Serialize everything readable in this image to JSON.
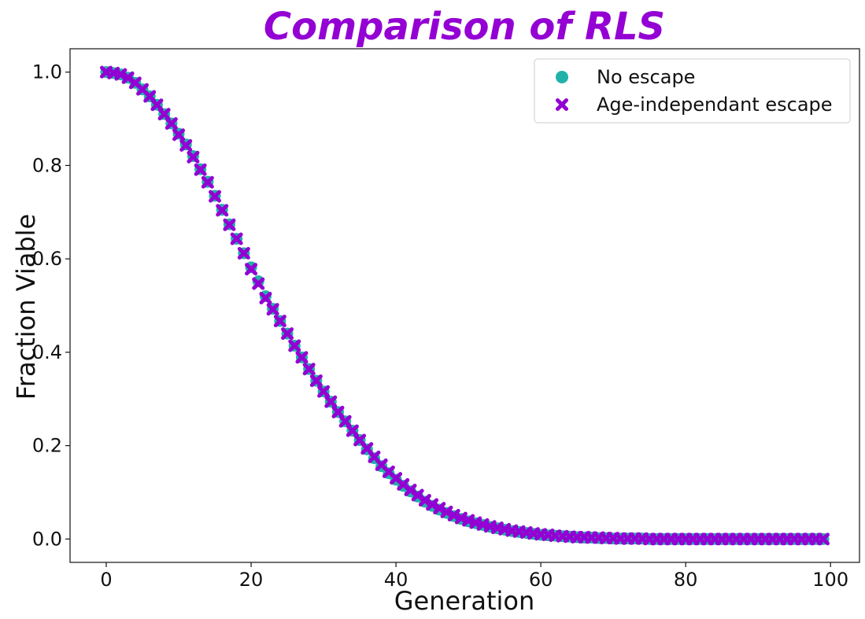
{
  "chart_data": {
    "type": "scatter",
    "title": "Comparison of RLS",
    "xlabel": "Generation",
    "ylabel": "Fraction Viable",
    "xlim": [
      -5,
      104
    ],
    "ylim": [
      -0.05,
      1.05
    ],
    "xticks": [
      0,
      20,
      40,
      60,
      80,
      100
    ],
    "xtick_labels": [
      "0",
      "20",
      "40",
      "60",
      "80",
      "100"
    ],
    "yticks": [
      0.0,
      0.2,
      0.4,
      0.6,
      0.8,
      1.0
    ],
    "ytick_labels": [
      "0.0",
      "0.2",
      "0.4",
      "0.6",
      "0.8",
      "1.0"
    ],
    "grid": false,
    "legend_position": "top-right",
    "x": [
      0,
      1,
      2,
      3,
      4,
      5,
      6,
      7,
      8,
      9,
      10,
      11,
      12,
      13,
      14,
      15,
      16,
      17,
      18,
      19,
      20,
      21,
      22,
      23,
      24,
      25,
      26,
      27,
      28,
      29,
      30,
      31,
      32,
      33,
      34,
      35,
      36,
      37,
      38,
      39,
      40,
      41,
      42,
      43,
      44,
      45,
      46,
      47,
      48,
      49,
      50,
      51,
      52,
      53,
      54,
      55,
      56,
      57,
      58,
      59,
      60,
      61,
      62,
      63,
      64,
      65,
      66,
      67,
      68,
      69,
      70,
      71,
      72,
      73,
      74,
      75,
      76,
      77,
      78,
      79,
      80,
      81,
      82,
      83,
      84,
      85,
      86,
      87,
      88,
      89,
      90,
      91,
      92,
      93,
      94,
      95,
      96,
      97,
      98,
      99
    ],
    "series": [
      {
        "name": "No escape",
        "marker": "circle",
        "color": "#20b2aa",
        "values": [
          1.0,
          0.998,
          0.995,
          0.988,
          0.977,
          0.963,
          0.948,
          0.93,
          0.91,
          0.89,
          0.868,
          0.845,
          0.82,
          0.792,
          0.765,
          0.735,
          0.705,
          0.674,
          0.643,
          0.612,
          0.582,
          0.552,
          0.52,
          0.493,
          0.467,
          0.44,
          0.414,
          0.389,
          0.364,
          0.339,
          0.316,
          0.294,
          0.272,
          0.252,
          0.232,
          0.212,
          0.192,
          0.173,
          0.156,
          0.141,
          0.127,
          0.114,
          0.102,
          0.091,
          0.08,
          0.071,
          0.063,
          0.056,
          0.049,
          0.043,
          0.038,
          0.034,
          0.03,
          0.026,
          0.023,
          0.02,
          0.017,
          0.015,
          0.013,
          0.011,
          0.009,
          0.008,
          0.007,
          0.006,
          0.005,
          0.004,
          0.003,
          0.003,
          0.002,
          0.002,
          0.001,
          0.001,
          0.001,
          0.001,
          0.001,
          0.0,
          0.0,
          0.0,
          0.0,
          0.0,
          0.0,
          0.0,
          0.0,
          0.0,
          0.0,
          0.0,
          0.0,
          0.0,
          0.0,
          0.0,
          0.0,
          0.0,
          0.0,
          0.0,
          0.0,
          0.0,
          0.0,
          0.0,
          0.0,
          0.0
        ]
      },
      {
        "name": "Age-independant escape",
        "marker": "x",
        "color": "#9400d3",
        "values": [
          1.0,
          0.998,
          0.995,
          0.988,
          0.977,
          0.963,
          0.948,
          0.93,
          0.91,
          0.89,
          0.866,
          0.843,
          0.818,
          0.791,
          0.764,
          0.734,
          0.704,
          0.673,
          0.643,
          0.612,
          0.578,
          0.547,
          0.516,
          0.492,
          0.467,
          0.44,
          0.414,
          0.389,
          0.364,
          0.339,
          0.316,
          0.294,
          0.272,
          0.252,
          0.232,
          0.212,
          0.194,
          0.176,
          0.159,
          0.144,
          0.13,
          0.117,
          0.105,
          0.094,
          0.083,
          0.074,
          0.066,
          0.058,
          0.051,
          0.045,
          0.04,
          0.035,
          0.031,
          0.027,
          0.024,
          0.021,
          0.018,
          0.016,
          0.014,
          0.012,
          0.01,
          0.009,
          0.007,
          0.006,
          0.005,
          0.004,
          0.004,
          0.003,
          0.003,
          0.002,
          0.002,
          0.001,
          0.001,
          0.001,
          0.001,
          0.0,
          0.0,
          0.0,
          0.0,
          0.0,
          0.0,
          0.0,
          0.0,
          0.0,
          0.0,
          0.0,
          0.0,
          0.0,
          0.0,
          0.0,
          0.0,
          0.0,
          0.0,
          0.0,
          0.0,
          0.0,
          0.0,
          0.0,
          0.0,
          0.0
        ]
      }
    ]
  },
  "colors": {
    "title": "#9400d3",
    "axis": "#111111"
  }
}
